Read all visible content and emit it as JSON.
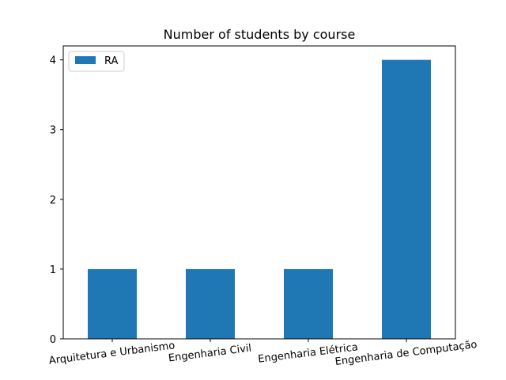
{
  "chart_data": {
    "type": "bar",
    "title": "Number of students by course",
    "xlabel": "",
    "ylabel": "",
    "categories": [
      "Arquitetura e Urbanismo",
      "Engenharia Civil",
      "Engenharia Elétrica",
      "Engenharia de Computação"
    ],
    "series": [
      {
        "name": "RA",
        "values": [
          1,
          1,
          1,
          4
        ],
        "color": "#1f77b4"
      }
    ],
    "yticks": [
      0,
      1,
      2,
      3,
      4
    ],
    "ylim": [
      0,
      4.2
    ],
    "grid": false,
    "legend_position": "top-left"
  }
}
